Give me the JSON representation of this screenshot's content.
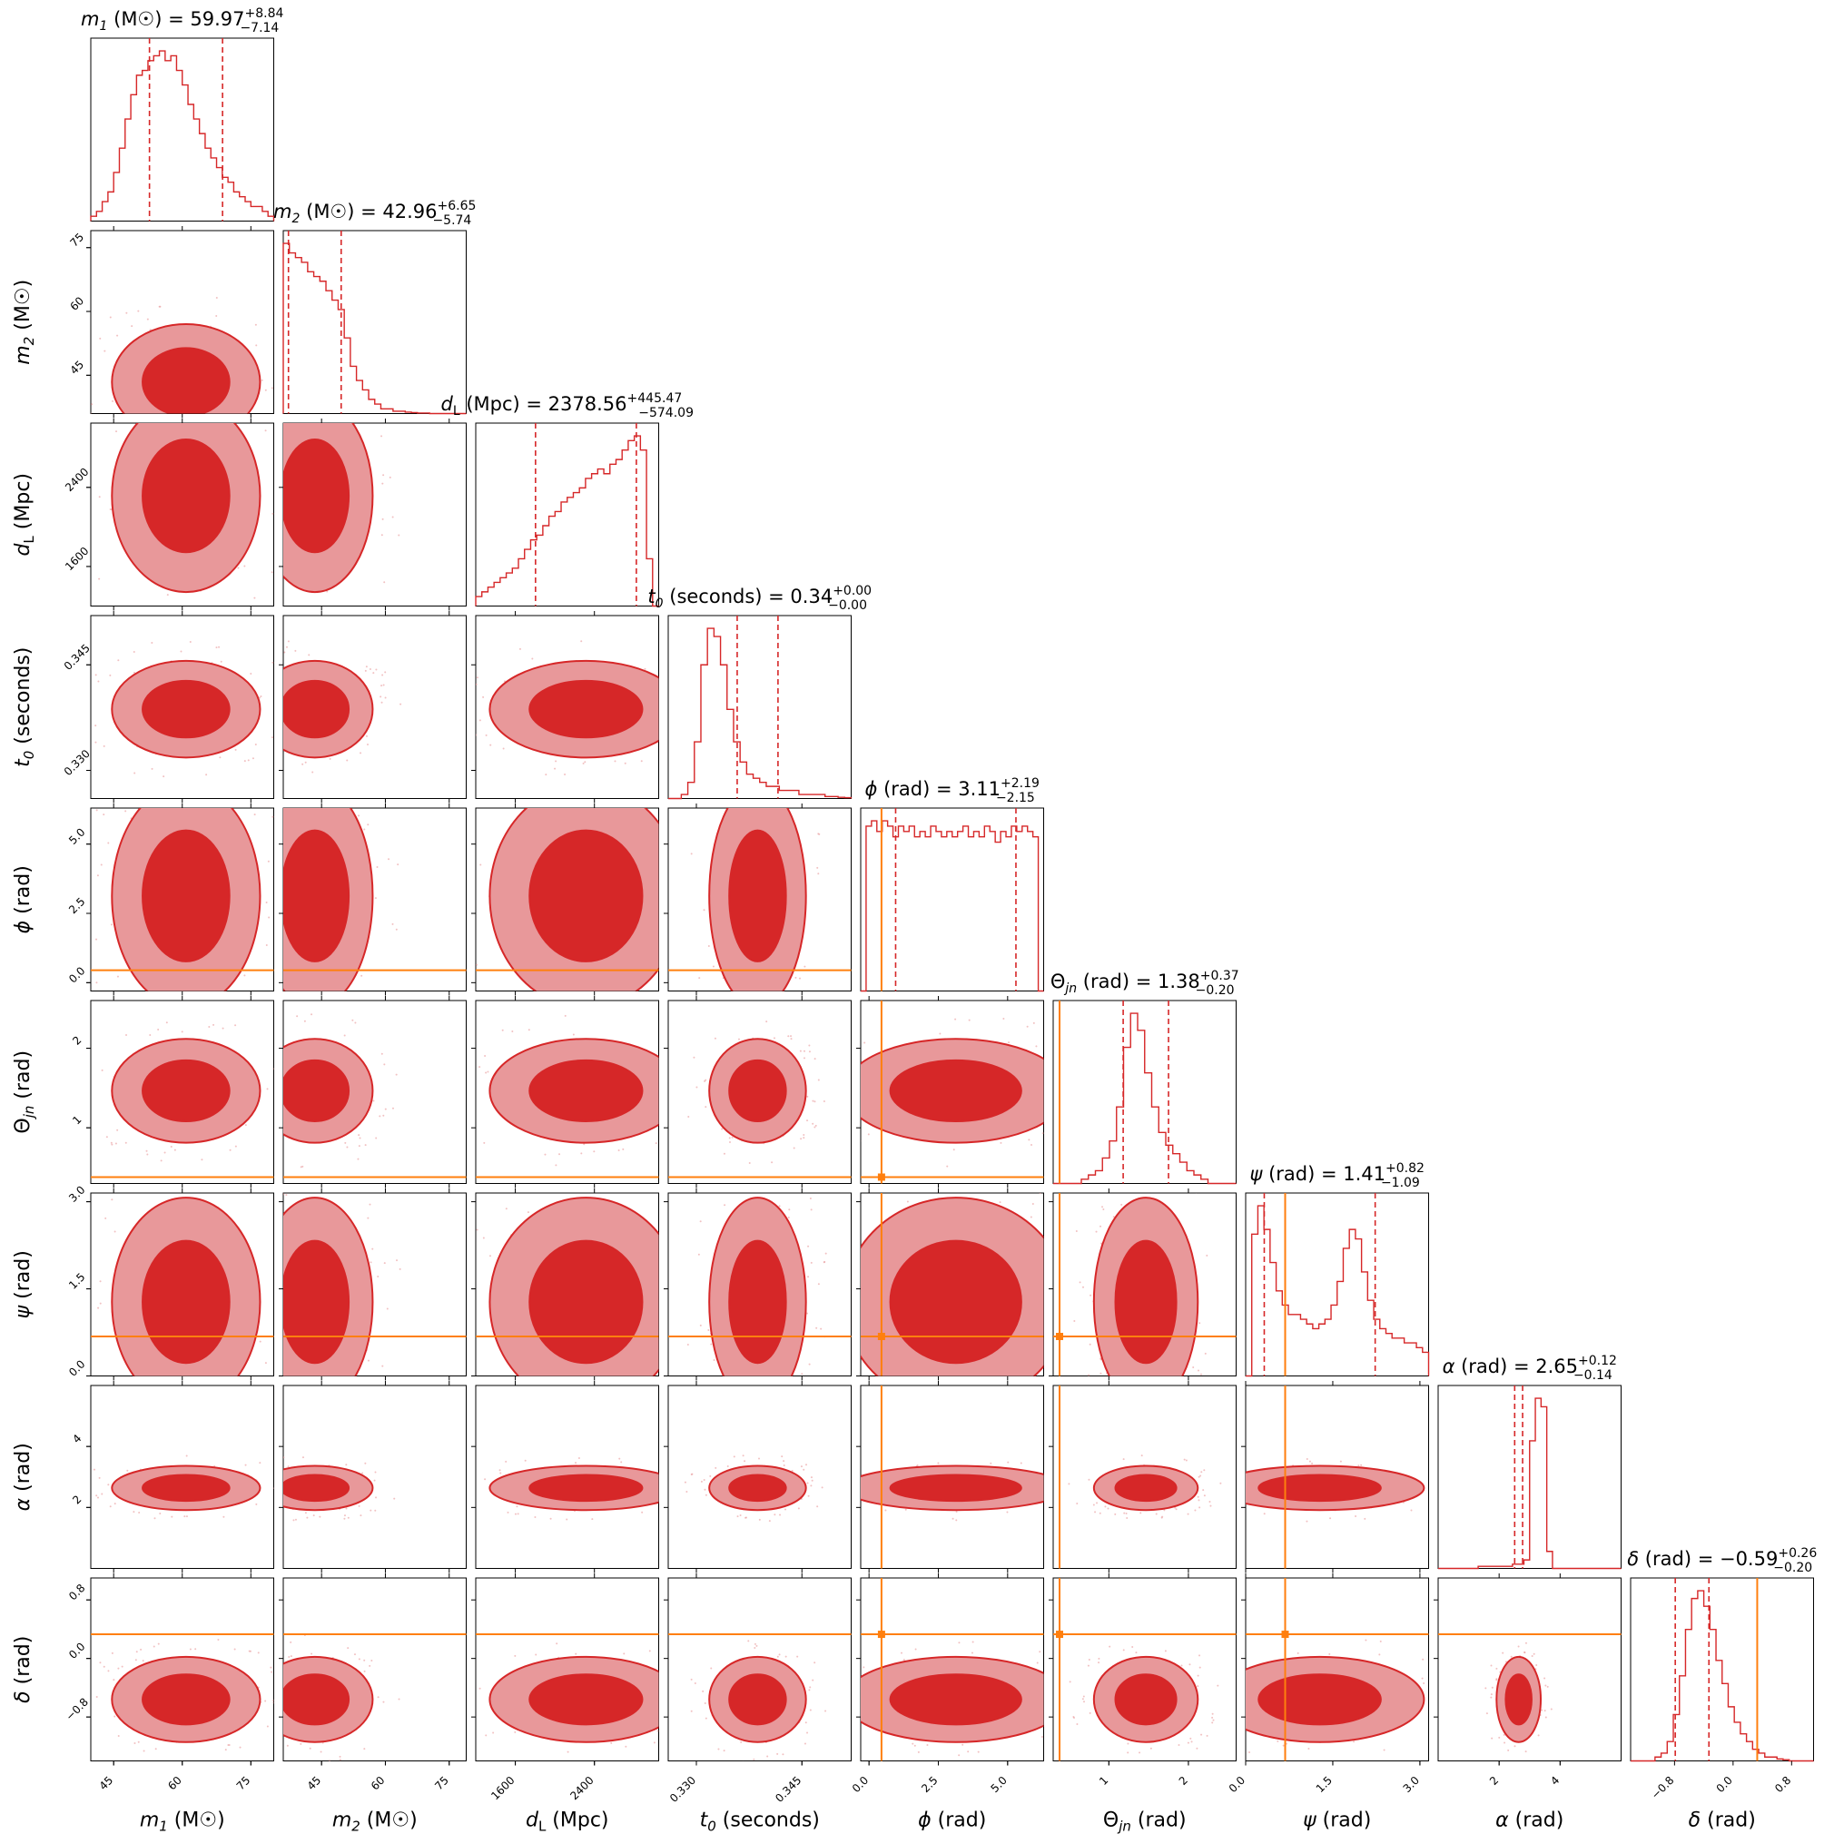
{
  "chart_data": {
    "type": "corner",
    "colors": {
      "posterior": "#d62728",
      "posterior_light": "#e8989a",
      "truth": "#ff7f0e",
      "axis": "#000000"
    },
    "parameters": [
      {
        "key": "m1",
        "sym": "m",
        "sub": "1",
        "italic": true,
        "unit": "M☉",
        "axis_label": "m1 (M☉)",
        "median": "59.97",
        "plus": "8.84",
        "minus": "7.14",
        "range": [
          40,
          80
        ],
        "ticks": [
          45,
          60,
          75
        ],
        "tick_labels": [
          "45",
          "60",
          "75"
        ],
        "q_lo": 52.83,
        "q_hi": 68.81,
        "truth": null
      },
      {
        "key": "m2",
        "sym": "m",
        "sub": "2",
        "italic": true,
        "unit": "M☉",
        "axis_label": "m2 (M☉)",
        "median": "42.96",
        "plus": "6.65",
        "minus": "5.74",
        "range": [
          36,
          79
        ],
        "ticks": [
          45,
          60,
          75
        ],
        "tick_labels": [
          "45",
          "60",
          "75"
        ],
        "q_lo": 37.22,
        "q_hi": 49.61,
        "truth": null
      },
      {
        "key": "dL",
        "sym": "d",
        "sub": "L",
        "italic": true,
        "sub_upright": true,
        "unit": "Mpc",
        "axis_label": "dL (Mpc)",
        "median": "2378.56",
        "plus": "445.47",
        "minus": "574.09",
        "range": [
          1200,
          3050
        ],
        "ticks": [
          1600,
          2400
        ],
        "tick_labels": [
          "1600",
          "2400"
        ],
        "q_lo": 1804.47,
        "q_hi": 2824.03,
        "truth": null
      },
      {
        "key": "t0",
        "sym": "t",
        "sub": "0",
        "italic": true,
        "unit": "seconds",
        "axis_label": "t0 (seconds)",
        "median": "0.34",
        "plus": "0.00",
        "minus": "0.00",
        "range": [
          0.326,
          0.352
        ],
        "ticks": [
          0.33,
          0.345
        ],
        "tick_labels": [
          "0.330",
          "0.345"
        ],
        "q_lo": 0.3358,
        "q_hi": 0.3416,
        "truth": null
      },
      {
        "key": "phi",
        "sym": "ϕ",
        "sub": "",
        "italic": true,
        "unit": "rad",
        "axis_label": "ϕ (rad)",
        "median": "3.11",
        "plus": "2.19",
        "minus": "2.15",
        "range": [
          -0.3,
          6.3
        ],
        "ticks": [
          0,
          2.5,
          5
        ],
        "tick_labels": [
          "0.0",
          "2.5",
          "5.0"
        ],
        "q_lo": 0.96,
        "q_hi": 5.3,
        "truth": 0.45
      },
      {
        "key": "theta_jn",
        "sym": "Θ",
        "sub": "jn",
        "italic": false,
        "unit": "rad",
        "axis_label": "Θjn (rad)",
        "median": "1.38",
        "plus": "0.37",
        "minus": "0.20",
        "range": [
          0.3,
          2.6
        ],
        "ticks": [
          1,
          2
        ],
        "tick_labels": [
          "1",
          "2"
        ],
        "q_lo": 1.18,
        "q_hi": 1.75,
        "truth": 0.38
      },
      {
        "key": "psi",
        "sym": "ψ",
        "sub": "",
        "italic": true,
        "unit": "rad",
        "axis_label": "ψ (rad)",
        "median": "1.41",
        "plus": "0.82",
        "minus": "1.09",
        "range": [
          0,
          3.15
        ],
        "ticks": [
          0,
          1.5,
          3
        ],
        "tick_labels": [
          "0.0",
          "1.5",
          "3.0"
        ],
        "q_lo": 0.32,
        "q_hi": 2.23,
        "truth": 0.68
      },
      {
        "key": "alpha",
        "sym": "α",
        "sub": "",
        "italic": true,
        "unit": "rad",
        "axis_label": "α (rad)",
        "median": "2.65",
        "plus": "0.12",
        "minus": "0.14",
        "range": [
          0,
          6
        ],
        "ticks": [
          2,
          4
        ],
        "tick_labels": [
          "2",
          "4"
        ],
        "q_lo": 2.51,
        "q_hi": 2.77,
        "truth": null
      },
      {
        "key": "delta",
        "sym": "δ",
        "sub": "",
        "italic": true,
        "unit": "rad",
        "axis_label": "δ (rad)",
        "median": "−0.59",
        "plus": "0.26",
        "minus": "0.20",
        "range": [
          -1.4,
          1.1
        ],
        "ticks": [
          -0.8,
          0.0,
          0.8
        ],
        "tick_labels": [
          "−0.8",
          "0.0",
          "0.8"
        ],
        "q_lo": -0.79,
        "q_hi": -0.33,
        "truth": 0.33
      }
    ],
    "histograms": {
      "m1": [
        1,
        2,
        4,
        6,
        10,
        15,
        21,
        26,
        30,
        31,
        33,
        34,
        35,
        33,
        34,
        31,
        28,
        24,
        21,
        18,
        15,
        13,
        11,
        9,
        8,
        6,
        5,
        4,
        3,
        3,
        2,
        1
      ],
      "m2": [
        36,
        34,
        33,
        32,
        30,
        29,
        28,
        26,
        24,
        22,
        16,
        10,
        7,
        5,
        3,
        2,
        1,
        1,
        0.5,
        0.5,
        0.3,
        0.2,
        0.1,
        0.1,
        0,
        0,
        0,
        0,
        0,
        0
      ],
      "dL": [
        2,
        3,
        4,
        5,
        6,
        7,
        8,
        10,
        12,
        14,
        15,
        17,
        19,
        20,
        22,
        23,
        24,
        25,
        27,
        28,
        29,
        28,
        30,
        31,
        33,
        35,
        36,
        33,
        10,
        0
      ],
      "t0": [
        0,
        0,
        1,
        4,
        14,
        33,
        42,
        40,
        33,
        22,
        14,
        9,
        6,
        5,
        4,
        3,
        3,
        2,
        2,
        2,
        1,
        1,
        1,
        1,
        0.5,
        0.5,
        0.3,
        0.2
      ],
      "phi": [
        0,
        31,
        32,
        30,
        32,
        31,
        29,
        31,
        30,
        31,
        29,
        30,
        29,
        31,
        30,
        29,
        30,
        29,
        30,
        31,
        29,
        30,
        29,
        31,
        30,
        28,
        30,
        29,
        31,
        30,
        31,
        30,
        29,
        0
      ],
      "theta_jn": [
        0,
        0,
        0,
        0,
        1,
        2,
        3,
        6,
        10,
        18,
        32,
        40,
        36,
        26,
        18,
        12,
        9,
        7,
        5,
        3,
        2,
        1,
        0,
        0,
        0,
        0
      ],
      "psi": [
        0,
        30,
        36,
        31,
        24,
        18,
        15,
        13,
        13,
        12,
        11,
        10,
        11,
        12,
        15,
        20,
        27,
        31,
        29,
        22,
        16,
        12,
        10,
        9,
        8,
        8,
        7,
        7,
        6,
        5
      ],
      "alpha": [
        0,
        0,
        0,
        0,
        0,
        0,
        0,
        0.5,
        0.5,
        0.5,
        0.5,
        0.5,
        0.5,
        1,
        1,
        2,
        30,
        40,
        38,
        4,
        0,
        0,
        0,
        0,
        0,
        0,
        0,
        0,
        0,
        0,
        0,
        0
      ],
      "delta": [
        0,
        0,
        0,
        0,
        1,
        2,
        5,
        12,
        22,
        34,
        42,
        44,
        40,
        34,
        26,
        20,
        14,
        10,
        7,
        5,
        3,
        2,
        1,
        1,
        0.5,
        0.3,
        0,
        0,
        0,
        0
      ]
    }
  }
}
